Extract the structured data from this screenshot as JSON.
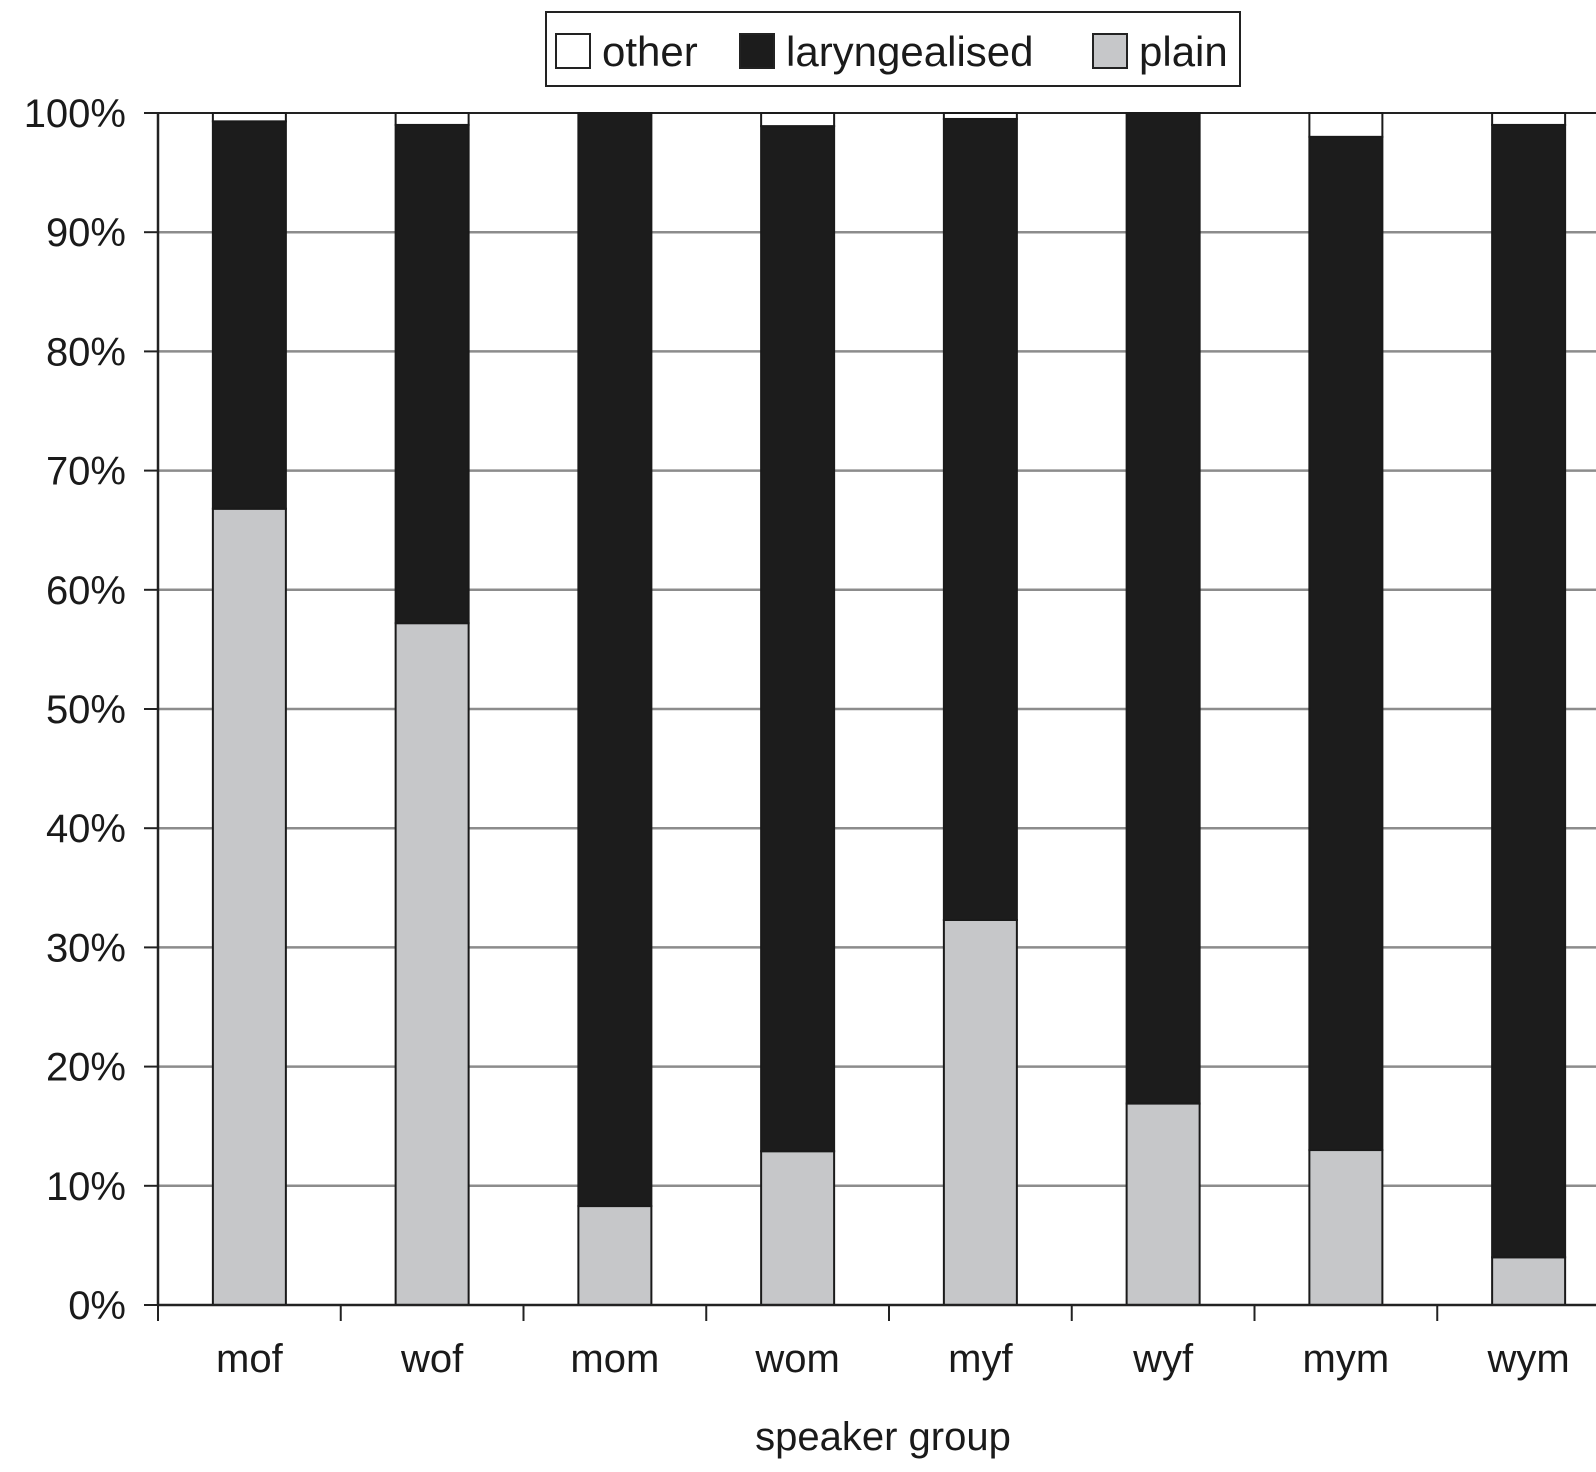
{
  "chart_data": {
    "type": "bar",
    "stacked": true,
    "categories": [
      "mof",
      "wof",
      "mom",
      "wom",
      "myf",
      "wyf",
      "mym",
      "wym"
    ],
    "series": [
      {
        "name": "plain",
        "color": "#c6c7c9",
        "values": [
          66.8,
          57.2,
          8.3,
          12.9,
          32.3,
          16.9,
          13.0,
          4.0
        ]
      },
      {
        "name": "laryngealised",
        "color": "#1c1c1c",
        "values": [
          32.5,
          41.8,
          91.7,
          86.0,
          67.2,
          83.1,
          85.0,
          95.0
        ]
      },
      {
        "name": "other",
        "color": "#ffffff",
        "values": [
          0.7,
          1.0,
          0.0,
          1.1,
          0.5,
          0.0,
          2.0,
          1.0
        ]
      }
    ],
    "yticks": [
      "0%",
      "10%",
      "20%",
      "30%",
      "40%",
      "50%",
      "60%",
      "70%",
      "80%",
      "90%",
      "100%"
    ],
    "ylim": [
      0,
      100
    ],
    "xlabel": "speaker group",
    "ylabel": "",
    "title": "",
    "legend": {
      "placement": "top-center",
      "order": [
        "other",
        "laryngealised",
        "plain"
      ]
    },
    "grid": true
  }
}
